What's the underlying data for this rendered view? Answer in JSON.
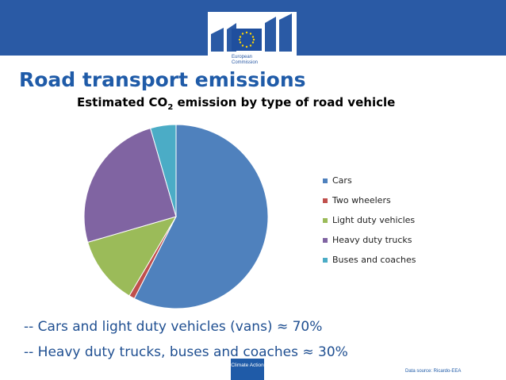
{
  "slide": {
    "title": "Road transport emissions",
    "logo_text": "European Commission",
    "footer_logo_text": "Climate Action",
    "source": "Data source: Ricardo-EEA",
    "bullets": [
      "-- Cars and light duty vehicles (vans) ≈ 70%",
      "-- Heavy duty trucks, buses and coaches ≈ 30%"
    ]
  },
  "colors": {
    "header": "#2a5aa5",
    "title": "#1f5ba8",
    "bullets": "#1f4f91"
  },
  "chart_data": {
    "type": "pie",
    "title_prefix": "Estimated CO",
    "title_sub": "2",
    "title_suffix": " emission by type of road vehicle",
    "legend_position": "right",
    "start_angle_deg": 0,
    "direction": "clockwise",
    "slices": [
      {
        "label": "Cars",
        "value": 57.5,
        "color": "#4f81bd"
      },
      {
        "label": "Two wheelers",
        "value": 1.0,
        "color": "#c0504d"
      },
      {
        "label": "Light duty vehicles",
        "value": 12.0,
        "color": "#9bbb59"
      },
      {
        "label": "Heavy duty trucks",
        "value": 25.0,
        "color": "#8064a2"
      },
      {
        "label": "Buses and coaches",
        "value": 4.5,
        "color": "#4bacc6"
      }
    ]
  }
}
